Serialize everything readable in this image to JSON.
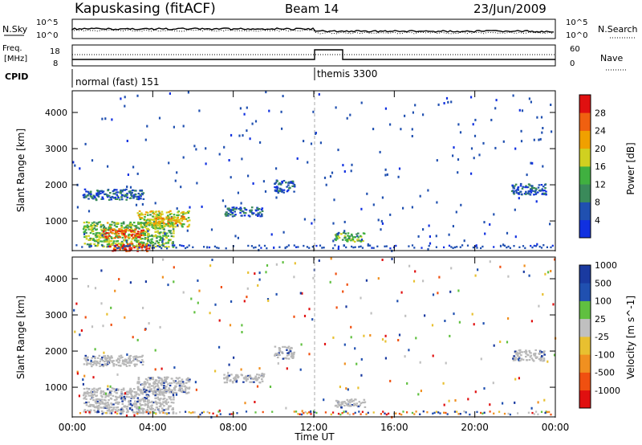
{
  "header": {
    "station": "Kapuskasing (fitACF)",
    "beam": "Beam 14",
    "date": "23/Jun/2009"
  },
  "aux_panels": {
    "nsky_label": "N.Sky",
    "nsearch_label": "N.Search",
    "noise_ticks": [
      "10^5",
      "10^0"
    ],
    "freq_label_line1": "Freq.",
    "freq_label_line2": "[MHz]",
    "freq_ticks": [
      "18",
      "8"
    ],
    "nave_label": "Nave",
    "nave_ticks": [
      "60",
      "0"
    ],
    "cpid_label": "CPID",
    "cpid_modes": [
      "normal (fast) 151",
      "themis 3300"
    ]
  },
  "x_axis": {
    "label": "Time UT",
    "ticks": [
      "00:00",
      "04:00",
      "08:00",
      "12:00",
      "16:00",
      "20:00",
      "00:00"
    ]
  },
  "colors": {
    "power_scale": [
      "#1030e0",
      "#2050b0",
      "#3a8a5a",
      "#40b040",
      "#d0d020",
      "#f0a000",
      "#f06010",
      "#e01010"
    ],
    "velocity_scale": [
      "#e01010",
      "#f05010",
      "#f09020",
      "#e8c030",
      "#c0c0c0",
      "#60c040",
      "#2050b0",
      "#1a3aa0"
    ],
    "ground_scatter": "#b8b8b8"
  },
  "chart_data": [
    {
      "type": "heatmap",
      "panel": "power",
      "ylabel": "Slant Range [km]",
      "xlabel": "Time UT",
      "y_ticks": [
        "1000",
        "2000",
        "3000",
        "4000"
      ],
      "ylim": [
        180,
        4600
      ],
      "xlim_hours": [
        0,
        24
      ],
      "colorbar_label": "Power [dB]",
      "colorbar_ticks": [
        "4",
        "8",
        "12",
        "16",
        "20",
        "24",
        "28"
      ],
      "colorbar_range": [
        0,
        30
      ],
      "patches": [
        {
          "t": [
            0.5,
            5.0
          ],
          "r": [
            300,
            1000
          ],
          "power": 14
        },
        {
          "t": [
            1.5,
            3.5
          ],
          "r": [
            550,
            800
          ],
          "power": 24
        },
        {
          "t": [
            1.8,
            3.8
          ],
          "r": [
            180,
            400
          ],
          "power": 26
        },
        {
          "t": [
            3.2,
            5.8
          ],
          "r": [
            850,
            1300
          ],
          "power": 16
        },
        {
          "t": [
            4.0,
            5.5
          ],
          "r": [
            950,
            1150
          ],
          "power": 20
        },
        {
          "t": [
            0.5,
            3.5
          ],
          "r": [
            1600,
            1900
          ],
          "power": 6
        },
        {
          "t": [
            7.5,
            9.5
          ],
          "r": [
            1150,
            1400
          ],
          "power": 6
        },
        {
          "t": [
            10.0,
            11.0
          ],
          "r": [
            1800,
            2150
          ],
          "power": 6
        },
        {
          "t": [
            13.0,
            14.5
          ],
          "r": [
            450,
            700
          ],
          "power": 12
        },
        {
          "t": [
            21.8,
            23.5
          ],
          "r": [
            1750,
            2050
          ],
          "power": 6
        }
      ]
    },
    {
      "type": "heatmap",
      "panel": "velocity",
      "ylabel": "Slant Range [km]",
      "xlabel": "Time UT",
      "y_ticks": [
        "1000",
        "2000",
        "3000",
        "4000"
      ],
      "ylim": [
        180,
        4600
      ],
      "xlim_hours": [
        0,
        24
      ],
      "colorbar_label": "Velocity [m s^-1]",
      "colorbar_ticks": [
        "1000",
        "500",
        "100",
        "25",
        "-25",
        "-100",
        "-500",
        "-1000"
      ],
      "patches": [
        {
          "t": [
            0.5,
            5.0
          ],
          "r": [
            300,
            1000
          ],
          "velocity": 0
        },
        {
          "t": [
            3.2,
            5.8
          ],
          "r": [
            850,
            1300
          ],
          "velocity": 0
        },
        {
          "t": [
            0.5,
            3.5
          ],
          "r": [
            1600,
            1900
          ],
          "velocity": 0
        },
        {
          "t": [
            7.5,
            9.5
          ],
          "r": [
            1150,
            1400
          ],
          "velocity": 0
        },
        {
          "t": [
            10.0,
            11.0
          ],
          "r": [
            1800,
            2150
          ],
          "velocity": 0
        },
        {
          "t": [
            13.0,
            14.5
          ],
          "r": [
            450,
            700
          ],
          "velocity": 0
        },
        {
          "t": [
            21.8,
            23.5
          ],
          "r": [
            1750,
            2050
          ],
          "velocity": 0
        }
      ]
    }
  ]
}
